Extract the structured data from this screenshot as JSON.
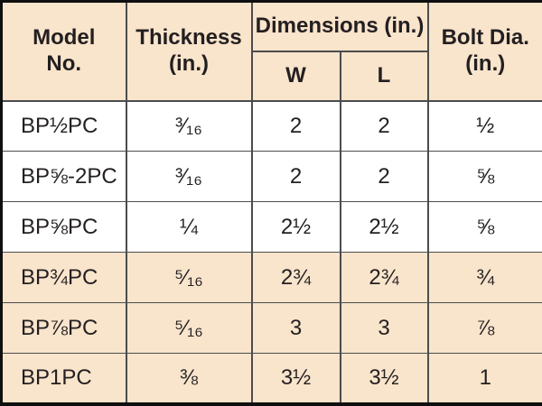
{
  "table": {
    "title": "bearing-plate-specifications",
    "headers": {
      "model": "Model\nNo.",
      "thickness": "Thickness\n(in.)",
      "dimensions": "Dimensions (in.)",
      "w": "W",
      "l": "L",
      "bolt_dia": "Bolt Dia.\n(in.)"
    },
    "rows": [
      {
        "model": "BP½PC",
        "thickness": "³⁄₁₆",
        "w": "2",
        "l": "2",
        "bolt_dia": "½"
      },
      {
        "model": "BP⅝-2PC",
        "thickness": "³⁄₁₆",
        "w": "2",
        "l": "2",
        "bolt_dia": "⅝"
      },
      {
        "model": "BP⅝PC",
        "thickness": "¼",
        "w": "2½",
        "l": "2½",
        "bolt_dia": "⅝"
      },
      {
        "model": "BP¾PC",
        "thickness": "⁵⁄₁₆",
        "w": "2¾",
        "l": "2¾",
        "bolt_dia": "¾"
      },
      {
        "model": "BP⅞PC",
        "thickness": "⁵⁄₁₆",
        "w": "3",
        "l": "3",
        "bolt_dia": "⅞"
      },
      {
        "model": "BP1PC",
        "thickness": "⅜",
        "w": "3½",
        "l": "3½",
        "bolt_dia": "1"
      }
    ]
  },
  "colors": {
    "shaded_band": "#f9e4cc",
    "text": "#231f20",
    "grid_line": "#4b4c4e",
    "outer_border": "#0f0f0f",
    "row_white": "#ffffff"
  }
}
